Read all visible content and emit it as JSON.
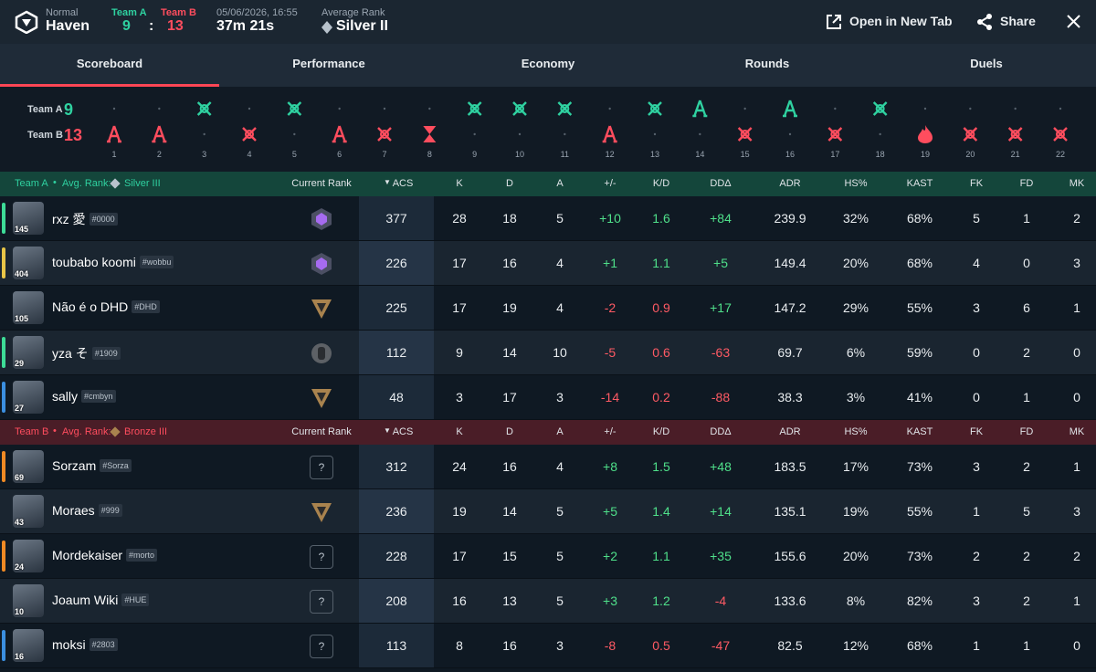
{
  "header": {
    "mode": "Normal",
    "map": "Haven",
    "team_a_label": "Team A",
    "team_a_score": 9,
    "separator": ":",
    "team_b_label": "Team B",
    "team_b_score": 13,
    "date": "05/06/2026, 16:55",
    "duration": "37m 21s",
    "avg_rank_label": "Average Rank",
    "avg_rank": "Silver II",
    "open_tab": "Open in New Tab",
    "share": "Share"
  },
  "tabs": {
    "items": [
      "Scoreboard",
      "Performance",
      "Economy",
      "Rounds",
      "Duels"
    ],
    "active": 0
  },
  "rounds": {
    "team_a_label": "Team A",
    "team_a_score": 9,
    "team_b_label": "Team B",
    "team_b_score": 13,
    "team_a_color": "#2fd1a0",
    "team_b_color": "#ff4d5e",
    "list": [
      {
        "number": 1,
        "winner": "B",
        "result": "spike"
      },
      {
        "number": 2,
        "winner": "B",
        "result": "spike"
      },
      {
        "number": 3,
        "winner": "A",
        "result": "elimination"
      },
      {
        "number": 4,
        "winner": "B",
        "result": "elimination"
      },
      {
        "number": 5,
        "winner": "A",
        "result": "elimination"
      },
      {
        "number": 6,
        "winner": "B",
        "result": "spike"
      },
      {
        "number": 7,
        "winner": "B",
        "result": "elimination"
      },
      {
        "number": 8,
        "winner": "B",
        "result": "time"
      },
      {
        "number": 9,
        "winner": "A",
        "result": "elimination"
      },
      {
        "number": 10,
        "winner": "A",
        "result": "elimination"
      },
      {
        "number": 11,
        "winner": "A",
        "result": "elimination"
      },
      {
        "number": 12,
        "winner": "B",
        "result": "spike"
      },
      {
        "number": 13,
        "winner": "A",
        "result": "elimination"
      },
      {
        "number": 14,
        "winner": "A",
        "result": "spike"
      },
      {
        "number": 15,
        "winner": "B",
        "result": "elimination"
      },
      {
        "number": 16,
        "winner": "A",
        "result": "spike"
      },
      {
        "number": 17,
        "winner": "B",
        "result": "elimination"
      },
      {
        "number": 18,
        "winner": "A",
        "result": "elimination"
      },
      {
        "number": 19,
        "winner": "B",
        "result": "detonate"
      },
      {
        "number": 20,
        "winner": "B",
        "result": "elimination"
      },
      {
        "number": 21,
        "winner": "B",
        "result": "elimination"
      },
      {
        "number": 22,
        "winner": "B",
        "result": "elimination"
      }
    ]
  },
  "table": {
    "columns": [
      "Current Rank",
      "ACS",
      "K",
      "D",
      "A",
      "+/-",
      "K/D",
      "DDΔ",
      "ADR",
      "HS%",
      "KAST",
      "FK",
      "FD",
      "MK"
    ],
    "teams": [
      {
        "name": "Team A",
        "avg_label": "Avg. Rank:",
        "avg_rank": "Silver III",
        "avg_tier": "silver",
        "color": "#2fd1a0",
        "header_color": "#14463b",
        "players": [
          {
            "name": "rxz 愛",
            "tag": "#0000",
            "level": 145,
            "accent": "#3ddc97",
            "rank_tier": "platinum",
            "stats": [
              "377",
              "28",
              "18",
              "5",
              "+10",
              "1.6",
              "+84",
              "239.9",
              "32%",
              "68%",
              "5",
              "1",
              "2"
            ]
          },
          {
            "name": "toubabo koomi",
            "tag": "#wobbu",
            "level": 404,
            "accent": "#e8c547",
            "rank_tier": "platinum",
            "stats": [
              "226",
              "17",
              "16",
              "4",
              "+1",
              "1.1",
              "+5",
              "149.4",
              "20%",
              "68%",
              "4",
              "0",
              "3"
            ]
          },
          {
            "name": "Não é o DHD",
            "tag": "#DHD",
            "level": 105,
            "rank_tier": "bronze",
            "stats": [
              "225",
              "17",
              "19",
              "4",
              "-2",
              "0.9",
              "+17",
              "147.2",
              "29%",
              "55%",
              "3",
              "6",
              "1"
            ]
          },
          {
            "name": "yza そ",
            "tag": "#1909",
            "level": 29,
            "accent": "#3ddc97",
            "rank_tier": "iron",
            "stats": [
              "112",
              "9",
              "14",
              "10",
              "-5",
              "0.6",
              "-63",
              "69.7",
              "6%",
              "59%",
              "0",
              "2",
              "0"
            ]
          },
          {
            "name": "sally",
            "tag": "#cmbyn",
            "level": 27,
            "accent": "#3b8fe0",
            "rank_tier": "bronze",
            "stats": [
              "48",
              "3",
              "17",
              "3",
              "-14",
              "0.2",
              "-88",
              "38.3",
              "3%",
              "41%",
              "0",
              "1",
              "0"
            ]
          }
        ]
      },
      {
        "name": "Team B",
        "avg_label": "Avg. Rank:",
        "avg_rank": "Bronze III",
        "avg_tier": "bronze",
        "color": "#ff4d5e",
        "header_color": "#4a1d27",
        "players": [
          {
            "name": "Sorzam",
            "tag": "#Sorza",
            "level": 69,
            "accent": "#f08a24",
            "rank_label": "?",
            "stats": [
              "312",
              "24",
              "16",
              "4",
              "+8",
              "1.5",
              "+48",
              "183.5",
              "17%",
              "73%",
              "3",
              "2",
              "1"
            ]
          },
          {
            "name": "Moraes",
            "tag": "#999",
            "level": 43,
            "rank_tier": "bronze",
            "stats": [
              "236",
              "19",
              "14",
              "5",
              "+5",
              "1.4",
              "+14",
              "135.1",
              "19%",
              "55%",
              "1",
              "5",
              "3"
            ]
          },
          {
            "name": "Mordekaiser",
            "tag": "#morto",
            "level": 24,
            "accent": "#f08a24",
            "rank_label": "?",
            "stats": [
              "228",
              "17",
              "15",
              "5",
              "+2",
              "1.1",
              "+35",
              "155.6",
              "20%",
              "73%",
              "2",
              "2",
              "2"
            ]
          },
          {
            "name": "Joaum Wiki",
            "tag": "#HUE",
            "level": 10,
            "rank_label": "?",
            "stats": [
              "208",
              "16",
              "13",
              "5",
              "+3",
              "1.2",
              "-4",
              "133.6",
              "8%",
              "82%",
              "3",
              "2",
              "1"
            ]
          },
          {
            "name": "moksi",
            "tag": "#2803",
            "level": 16,
            "accent": "#3b8fe0",
            "rank_label": "?",
            "stats": [
              "113",
              "8",
              "16",
              "3",
              "-8",
              "0.5",
              "-47",
              "82.5",
              "12%",
              "68%",
              "1",
              "1",
              "0"
            ]
          }
        ]
      }
    ]
  }
}
